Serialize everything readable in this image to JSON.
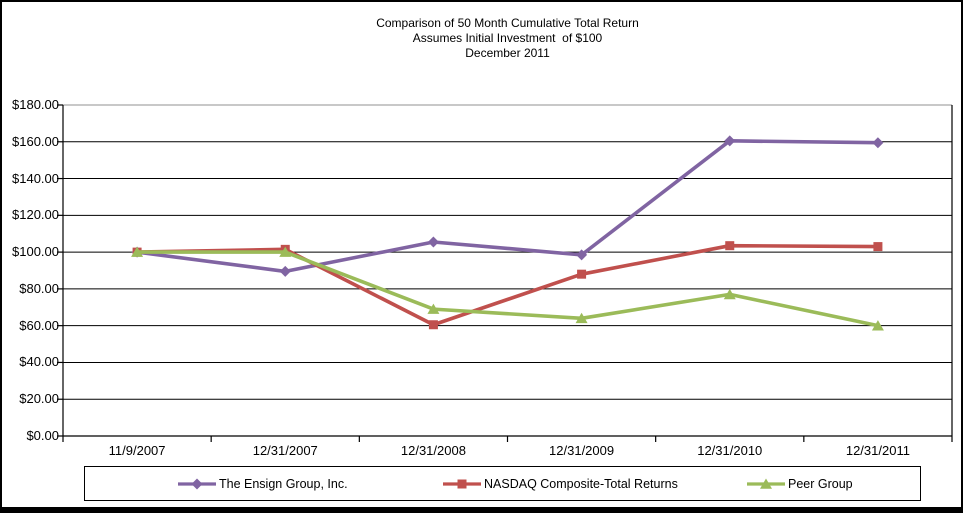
{
  "title": {
    "line1": "Comparison of 50 Month Cumulative Total Return",
    "line2": "Assumes Initial Investment  of $100",
    "line3": "December 2011"
  },
  "chart_data": {
    "type": "line",
    "title": "Comparison of 50 Month Cumulative Total Return",
    "subtitle": "Assumes Initial Investment of $100",
    "subtitle2": "December 2011",
    "categories": [
      "11/9/2007",
      "12/31/2007",
      "12/31/2008",
      "12/31/2009",
      "12/31/2010",
      "12/31/2011"
    ],
    "series": [
      {
        "name": "The Ensign Group, Inc.",
        "color": "#8064A2",
        "marker": "diamond",
        "values": [
          100.0,
          89.5,
          105.5,
          98.5,
          160.5,
          159.5
        ]
      },
      {
        "name": "NASDAQ Composite-Total Returns",
        "color": "#C0504D",
        "marker": "square",
        "values": [
          100.0,
          101.5,
          60.5,
          88.0,
          103.5,
          103.0
        ]
      },
      {
        "name": "Peer Group",
        "color": "#9BBB59",
        "marker": "triangle",
        "values": [
          100.0,
          100.0,
          69.0,
          64.0,
          77.0,
          60.0
        ]
      }
    ],
    "ylim": [
      0,
      180
    ],
    "ytick_step": 20,
    "ytick_labels": [
      "$0.00",
      "$20.00",
      "$40.00",
      "$60.00",
      "$80.00",
      "$100.00",
      "$120.00",
      "$140.00",
      "$160.00",
      "$180.00"
    ],
    "xlabel": "",
    "ylabel": "",
    "grid": true,
    "gridline_color": "#000000",
    "top_line_color": "#A6A6A6",
    "legend_position": "bottom"
  }
}
